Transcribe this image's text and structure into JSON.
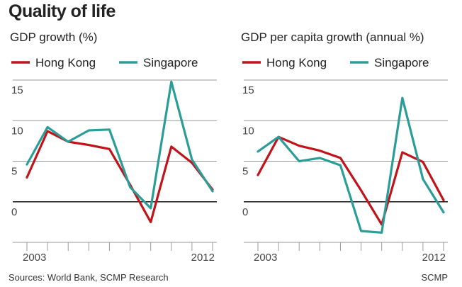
{
  "title": "Quality of life",
  "footer": {
    "sources": "Sources:  World Bank, SCMP Research",
    "credit": "SCMP"
  },
  "colors": {
    "hong_kong": "#c0141a",
    "singapore": "#2a9d98",
    "grid": "#9a9a9a",
    "zero": "#111111",
    "tick": "#9a9a9a"
  },
  "chart_data": [
    {
      "type": "line",
      "title": "GDP growth (%)",
      "x": [
        2003,
        2004,
        2005,
        2006,
        2007,
        2008,
        2009,
        2010,
        2011,
        2012
      ],
      "x_tick_labels": [
        "2003",
        "2012"
      ],
      "y_ticks": [
        0,
        5,
        10,
        15
      ],
      "ylim": [
        -5,
        15
      ],
      "legend": "top",
      "grid": true,
      "series": [
        {
          "name": "Hong Kong",
          "values": [
            3.0,
            8.7,
            7.4,
            7.0,
            6.5,
            2.1,
            -2.5,
            6.8,
            4.8,
            1.5
          ]
        },
        {
          "name": "Singapore",
          "values": [
            4.6,
            9.2,
            7.4,
            8.8,
            8.9,
            1.8,
            -0.8,
            14.8,
            5.2,
            1.3
          ]
        }
      ]
    },
    {
      "type": "line",
      "title": "GDP per capita growth (annual %)",
      "x": [
        2003,
        2004,
        2005,
        2006,
        2007,
        2008,
        2009,
        2010,
        2011,
        2012
      ],
      "x_tick_labels": [
        "2003",
        "2012"
      ],
      "y_ticks": [
        0,
        5,
        10,
        15
      ],
      "ylim": [
        -5,
        15
      ],
      "legend": "top",
      "grid": true,
      "series": [
        {
          "name": "Hong Kong",
          "values": [
            3.3,
            8.0,
            6.9,
            6.3,
            5.4,
            1.4,
            -2.8,
            6.1,
            4.9,
            0.2
          ]
        },
        {
          "name": "Singapore",
          "values": [
            6.2,
            8.0,
            5.0,
            5.4,
            4.5,
            -3.6,
            -3.8,
            12.8,
            2.8,
            -1.3
          ]
        }
      ]
    }
  ]
}
